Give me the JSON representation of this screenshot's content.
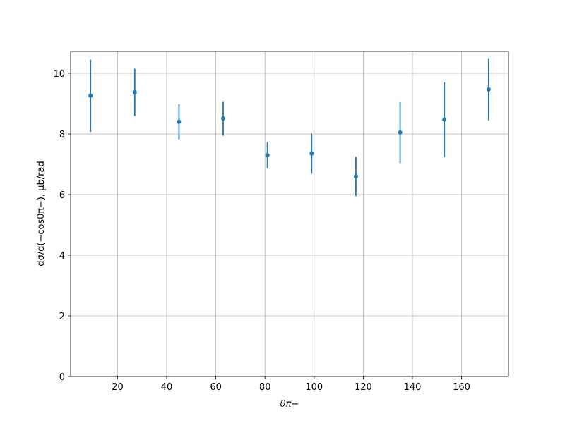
{
  "chart_data": {
    "type": "scatter",
    "x_label": "θπ−",
    "y_label": "dσ/d(−cosθπ−), μb/rad",
    "x": [
      9,
      27,
      45,
      63,
      81,
      99,
      117,
      135,
      153,
      171
    ],
    "values": [
      9.26,
      9.37,
      8.4,
      8.51,
      7.3,
      7.35,
      6.6,
      8.05,
      8.47,
      9.47
    ],
    "errors": [
      1.19,
      0.78,
      0.58,
      0.57,
      0.43,
      0.66,
      0.65,
      1.02,
      1.23,
      1.03
    ],
    "color": "#1f77b4",
    "xlim": [
      0.9,
      179.1
    ],
    "ylim": [
      0,
      10.72
    ],
    "xticks": [
      20,
      40,
      60,
      80,
      100,
      120,
      140,
      160
    ],
    "yticks": [
      0,
      2,
      4,
      6,
      8,
      10
    ],
    "grid": true
  }
}
